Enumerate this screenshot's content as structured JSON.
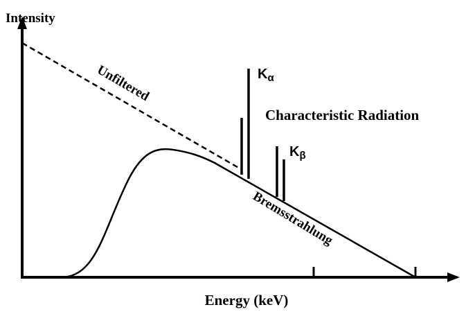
{
  "axes": {
    "y_label": "Intensity",
    "x_label": "Energy (keV)"
  },
  "curves": {
    "unfiltered": "Unfiltered",
    "bremsstrahlung": "Bremsstrahlung"
  },
  "characteristic": {
    "title": "Characteristic Radiation",
    "k_alpha": {
      "main": "K",
      "sub": "α"
    },
    "k_beta": {
      "main": "K",
      "sub": "β"
    }
  }
}
